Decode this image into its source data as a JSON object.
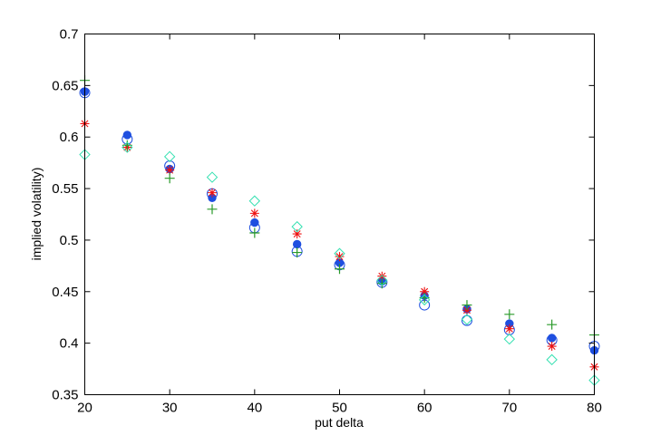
{
  "chart_data": {
    "type": "scatter",
    "title": "",
    "xlabel": "put delta",
    "ylabel": "implied volatility)",
    "xlim": [
      20,
      80
    ],
    "ylim": [
      0.35,
      0.7
    ],
    "xticks": [
      20,
      30,
      40,
      50,
      60,
      70,
      80
    ],
    "xtick_labels": [
      "20",
      "30",
      "40",
      "50",
      "60",
      "70",
      "80"
    ],
    "yticks": [
      0.35,
      0.4,
      0.45,
      0.5,
      0.55,
      0.6,
      0.65,
      0.7
    ],
    "ytick_labels": [
      "0.35",
      "0.4",
      "0.45",
      "0.5",
      "0.55",
      "0.6",
      "0.65",
      "0.7"
    ],
    "grid": false,
    "x": [
      20,
      25,
      30,
      35,
      40,
      45,
      50,
      55,
      60,
      65,
      70,
      75,
      80
    ],
    "series": [
      {
        "marker": "filled-circle",
        "color": "#1f4fe0",
        "values": [
          0.644,
          0.602,
          0.569,
          0.541,
          0.517,
          0.496,
          0.478,
          0.46,
          0.446,
          0.433,
          0.419,
          0.405,
          0.393
        ]
      },
      {
        "marker": "open-circle",
        "color": "#1f4fe0",
        "values": [
          0.643,
          0.598,
          0.572,
          0.545,
          0.512,
          0.489,
          0.476,
          0.459,
          0.437,
          0.422,
          0.413,
          0.403,
          0.397
        ]
      },
      {
        "marker": "star",
        "color": "#ee1111",
        "values": [
          0.613,
          0.59,
          0.568,
          0.546,
          0.526,
          0.506,
          0.484,
          0.465,
          0.45,
          0.432,
          0.414,
          0.397,
          0.377
        ]
      },
      {
        "marker": "plus",
        "color": "#2a9a2a",
        "values": [
          0.655,
          0.592,
          0.56,
          0.53,
          0.507,
          0.488,
          0.472,
          0.458,
          0.444,
          0.437,
          0.428,
          0.418,
          0.408
        ]
      },
      {
        "marker": "diamond",
        "color": "#33e0b0",
        "values": [
          0.583,
          0.59,
          0.581,
          0.561,
          0.538,
          0.513,
          0.487,
          0.461,
          0.442,
          0.423,
          0.404,
          0.384,
          0.364
        ]
      }
    ]
  }
}
